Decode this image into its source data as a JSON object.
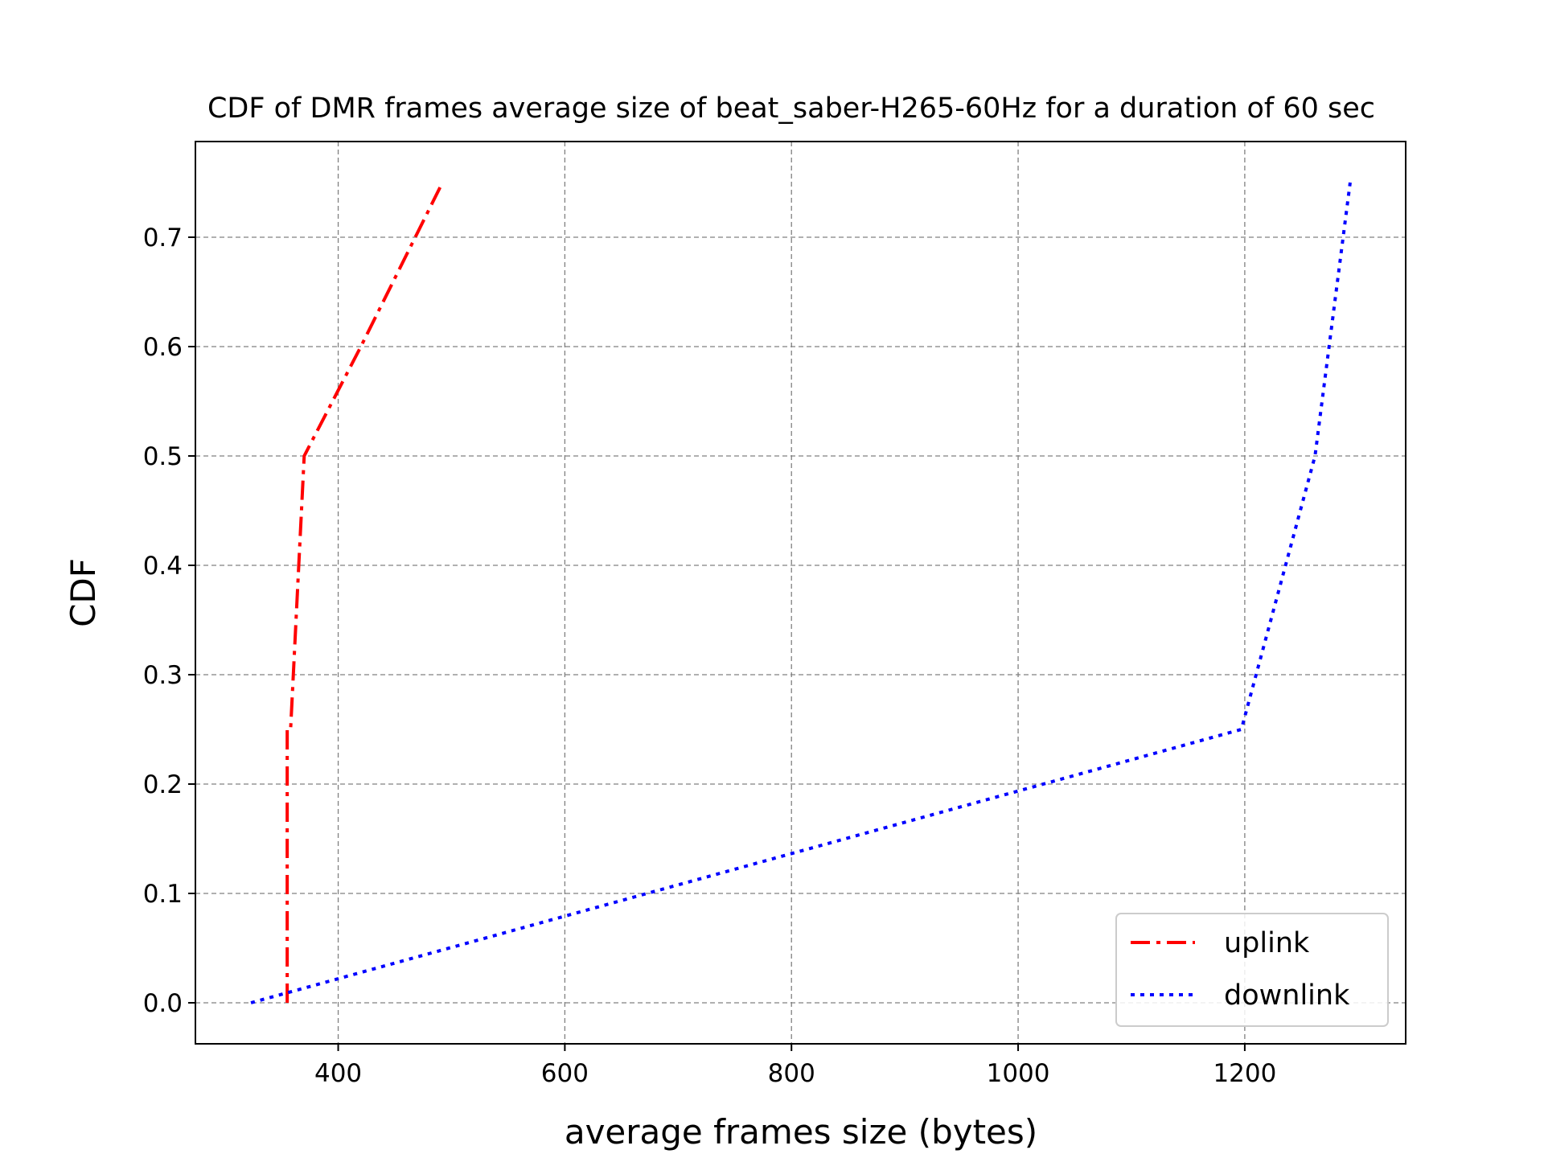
{
  "chart_data": {
    "type": "line",
    "title": "CDF of DMR frames average size of beat_saber-H265-60Hz for a duration of 60 sec",
    "xlabel": "average frames size (bytes)",
    "ylabel": "CDF",
    "xlim": [
      274,
      1342
    ],
    "ylim": [
      -0.0375,
      0.7875
    ],
    "xticks": [
      400,
      600,
      800,
      1000,
      1200
    ],
    "yticks": [
      0.0,
      0.1,
      0.2,
      0.3,
      0.4,
      0.5,
      0.6,
      0.7
    ],
    "grid": true,
    "legend_position": "lower-right",
    "series": [
      {
        "name": "uplink",
        "color": "#ff0000",
        "style": "dashdot",
        "x": [
          355,
          355,
          358,
          370,
          420,
          492
        ],
        "y": [
          0.0,
          0.25,
          0.25,
          0.5,
          0.6,
          0.75
        ]
      },
      {
        "name": "downlink",
        "color": "#0000ff",
        "style": "dotted",
        "x": [
          323,
          1197,
          1262,
          1293
        ],
        "y": [
          0.0,
          0.25,
          0.5,
          0.75
        ]
      }
    ]
  }
}
